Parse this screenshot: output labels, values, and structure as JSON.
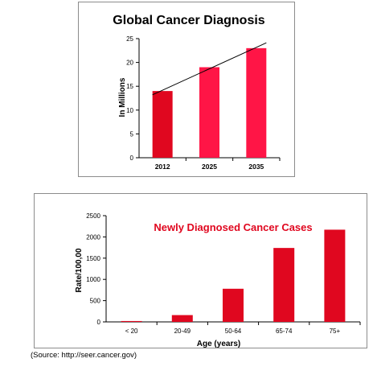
{
  "chart_data": [
    {
      "type": "bar",
      "title": "Global Cancer Diagnosis",
      "xlabel": "",
      "ylabel": "In Millions",
      "categories": [
        "2012",
        "2025",
        "2035"
      ],
      "values": [
        14,
        19,
        23
      ],
      "ylim": [
        0,
        25
      ],
      "yticks": [
        "0",
        "5",
        "10",
        "15",
        "20",
        "25"
      ],
      "grid": false,
      "legend": "none",
      "trendline": true,
      "colors": [
        "#e0071f",
        "#ff1546",
        "#ff1546"
      ],
      "trend_color": "#000000"
    },
    {
      "type": "bar",
      "title": "Newly Diagnosed Cancer Cases",
      "xlabel": "Age (years)",
      "ylabel": "Rate/100,00",
      "categories": [
        "< 20",
        "20-49",
        "50-64",
        "65-74",
        "75+"
      ],
      "values": [
        20,
        160,
        780,
        1740,
        2170
      ],
      "ylim": [
        0,
        2500
      ],
      "yticks": [
        "0",
        "500",
        "1000",
        "1500",
        "2000",
        "2500"
      ],
      "grid": false,
      "legend": "none",
      "bar_color": "#e0071f",
      "title_color": "#e0071f"
    }
  ],
  "source": "(Source: http://seer.cancer.gov)"
}
